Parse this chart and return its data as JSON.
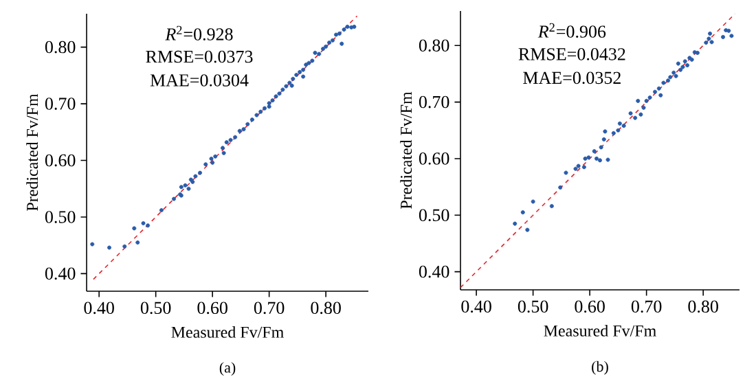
{
  "chart_data": [
    {
      "type": "scatter",
      "xlabel": "Measured Fv/Fm",
      "ylabel": "Predicated Fv/Fm",
      "xlim": [
        0.378,
        0.875
      ],
      "ylim": [
        0.369,
        0.859
      ],
      "xticks": [
        {
          "value": 0.4,
          "label": "0.40"
        },
        {
          "value": 0.5,
          "label": "0.50"
        },
        {
          "value": 0.6,
          "label": "0.60"
        },
        {
          "value": 0.7,
          "label": "0.70"
        },
        {
          "value": 0.8,
          "label": "0.80"
        }
      ],
      "yticks": [
        {
          "value": 0.4,
          "label": "0.40"
        },
        {
          "value": 0.5,
          "label": "0.50"
        },
        {
          "value": 0.6,
          "label": "0.60"
        },
        {
          "value": 0.7,
          "label": "0.70"
        },
        {
          "value": 0.8,
          "label": "0.80"
        }
      ],
      "annotations": [
        "*R*$^{2}$=0.928",
        "RMSE=0.0373",
        "MAE=0.0304",
        "(a)"
      ],
      "series": [
        {
          "type": "scatter",
          "color": "#2a5caa",
          "marker": "circle",
          "x": [
            0.388,
            0.418,
            0.445,
            0.462,
            0.468,
            0.478,
            0.486,
            0.51,
            0.532,
            0.543,
            0.545,
            0.552,
            0.558,
            0.562,
            0.57,
            0.578,
            0.588,
            0.598,
            0.605,
            0.618,
            0.625,
            0.632,
            0.64,
            0.648,
            0.655,
            0.662,
            0.67,
            0.678,
            0.685,
            0.692,
            0.7,
            0.706,
            0.712,
            0.718,
            0.724,
            0.73,
            0.736,
            0.742,
            0.748,
            0.754,
            0.76,
            0.765,
            0.77,
            0.776,
            0.781,
            0.788,
            0.795,
            0.8,
            0.806,
            0.812,
            0.818,
            0.824,
            0.828,
            0.832,
            0.838,
            0.845,
            0.85,
            0.76,
            0.74,
            0.7,
            0.62,
            0.6,
            0.565,
            0.545
          ],
          "values": [
            0.452,
            0.446,
            0.448,
            0.48,
            0.455,
            0.489,
            0.485,
            0.512,
            0.532,
            0.54,
            0.553,
            0.556,
            0.55,
            0.566,
            0.572,
            0.578,
            0.593,
            0.603,
            0.607,
            0.622,
            0.632,
            0.636,
            0.641,
            0.652,
            0.655,
            0.664,
            0.672,
            0.68,
            0.686,
            0.692,
            0.701,
            0.706,
            0.713,
            0.718,
            0.725,
            0.731,
            0.737,
            0.744,
            0.751,
            0.756,
            0.76,
            0.769,
            0.772,
            0.776,
            0.79,
            0.788,
            0.797,
            0.801,
            0.808,
            0.812,
            0.822,
            0.824,
            0.806,
            0.831,
            0.836,
            0.835,
            0.836,
            0.748,
            0.732,
            0.695,
            0.613,
            0.596,
            0.562,
            0.538
          ]
        },
        {
          "type": "line",
          "color": "#e8202a",
          "line_style": "dashed",
          "marker": "none",
          "x": [
            0.39,
            0.855
          ],
          "values": [
            0.39,
            0.855
          ]
        }
      ]
    },
    {
      "type": "scatter",
      "xlabel": "Measured Fv/Fm",
      "ylabel": "Predicated Fv/Fm",
      "xlim": [
        0.372,
        0.864
      ],
      "ylim": [
        0.368,
        0.861
      ],
      "xticks": [
        {
          "value": 0.4,
          "label": "0.40"
        },
        {
          "value": 0.5,
          "label": "0.50"
        },
        {
          "value": 0.6,
          "label": "0.60"
        },
        {
          "value": 0.7,
          "label": "0.70"
        },
        {
          "value": 0.8,
          "label": "0.80"
        }
      ],
      "yticks": [
        {
          "value": 0.4,
          "label": "0.40"
        },
        {
          "value": 0.5,
          "label": "0.50"
        },
        {
          "value": 0.6,
          "label": "0.60"
        },
        {
          "value": 0.7,
          "label": "0.70"
        },
        {
          "value": 0.8,
          "label": "0.80"
        }
      ],
      "annotations": [
        "*R*$^{2}$=0.906",
        "RMSE=0.0432",
        "MAE=0.0352",
        "(b)"
      ],
      "series": [
        {
          "type": "scatter",
          "color": "#2a5caa",
          "marker": "circle",
          "x": [
            0.468,
            0.482,
            0.49,
            0.5,
            0.533,
            0.548,
            0.558,
            0.575,
            0.58,
            0.59,
            0.592,
            0.598,
            0.608,
            0.612,
            0.618,
            0.62,
            0.625,
            0.627,
            0.632,
            0.642,
            0.65,
            0.653,
            0.66,
            0.672,
            0.68,
            0.685,
            0.69,
            0.695,
            0.7,
            0.706,
            0.715,
            0.722,
            0.725,
            0.73,
            0.738,
            0.742,
            0.748,
            0.752,
            0.756,
            0.76,
            0.764,
            0.768,
            0.772,
            0.776,
            0.78,
            0.785,
            0.79,
            0.805,
            0.81,
            0.812,
            0.815,
            0.835,
            0.84,
            0.845,
            0.85
          ],
          "values": [
            0.485,
            0.505,
            0.474,
            0.524,
            0.516,
            0.549,
            0.575,
            0.582,
            0.587,
            0.585,
            0.6,
            0.602,
            0.613,
            0.6,
            0.597,
            0.62,
            0.634,
            0.648,
            0.598,
            0.645,
            0.65,
            0.662,
            0.658,
            0.68,
            0.672,
            0.702,
            0.678,
            0.69,
            0.702,
            0.708,
            0.718,
            0.724,
            0.712,
            0.734,
            0.738,
            0.744,
            0.752,
            0.746,
            0.768,
            0.757,
            0.762,
            0.772,
            0.765,
            0.778,
            0.775,
            0.788,
            0.787,
            0.805,
            0.812,
            0.821,
            0.806,
            0.815,
            0.827,
            0.826,
            0.817
          ]
        },
        {
          "type": "line",
          "color": "#e8202a",
          "line_style": "dashed",
          "marker": "none",
          "x": [
            0.372,
            0.856
          ],
          "values": [
            0.372,
            0.856
          ]
        }
      ]
    }
  ]
}
